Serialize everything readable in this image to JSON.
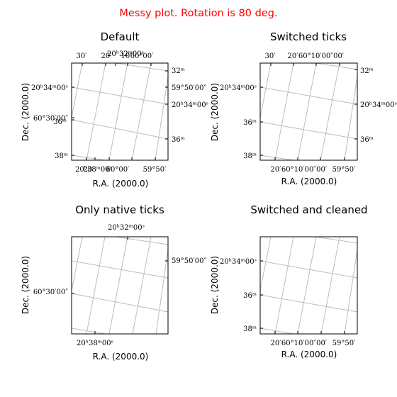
{
  "figure": {
    "suptitle": "Messy plot. Rotation is 80 deg.",
    "suptitle_color": "#ff0000"
  },
  "chart_data": [
    {
      "type": "image",
      "title": "Default",
      "xlabel": "R.A. (2000.0)",
      "ylabel": "Dec. (2000.0)",
      "grid": true,
      "ticks": {
        "top": [
          "30′",
          "20′",
          "20ʰ32ᵐ00ˢ",
          "10′",
          "60°00′"
        ],
        "bottom": [
          "20ʰ38ᵐ00ˢ",
          "20′",
          "60°00′",
          "59°50′"
        ],
        "left": [
          "20ʰ34ᵐ00ˢ",
          "60°30′00″",
          "36ᵐ",
          "38ᵐ"
        ],
        "right": [
          "32ᵐ",
          "59°50′00″",
          "20ʰ34ᵐ00ˢ",
          "36ᵐ"
        ]
      }
    },
    {
      "type": "image",
      "title": "Switched ticks",
      "xlabel": "R.A. (2000.0)",
      "ylabel": "Dec. (2000.0)",
      "grid": true,
      "ticks": {
        "top": [
          "30′",
          "20′",
          "60°10′00″00′"
        ],
        "bottom": [
          "20′",
          "60°10′00″00′",
          "59°50′"
        ],
        "left": [
          "20ʰ34ᵐ00ˢ",
          "36ᵐ",
          "38ᵐ"
        ],
        "right": [
          "32ᵐ",
          "20ʰ34ᵐ00ˢ",
          "36ᵐ"
        ]
      }
    },
    {
      "type": "image",
      "title": "Only native ticks",
      "xlabel": "R.A. (2000.0)",
      "ylabel": "Dec. (2000.0)",
      "grid": true,
      "ticks": {
        "top": [
          "20ʰ32ᵐ00ˢ"
        ],
        "bottom": [
          "20ʰ38ᵐ00ˢ"
        ],
        "left": [
          "60°30′00″"
        ],
        "right": [
          "59°50′00″"
        ]
      }
    },
    {
      "type": "image",
      "title": "Switched and cleaned",
      "xlabel": "R.A. (2000.0)",
      "ylabel": "Dec. (2000.0)",
      "grid": true,
      "ticks": {
        "top": [],
        "bottom": [
          "20′",
          "60°10′00″00′",
          "59°50′"
        ],
        "left": [
          "20ʰ34ᵐ00ˢ",
          "36ᵐ",
          "38ᵐ"
        ],
        "right": []
      }
    }
  ]
}
